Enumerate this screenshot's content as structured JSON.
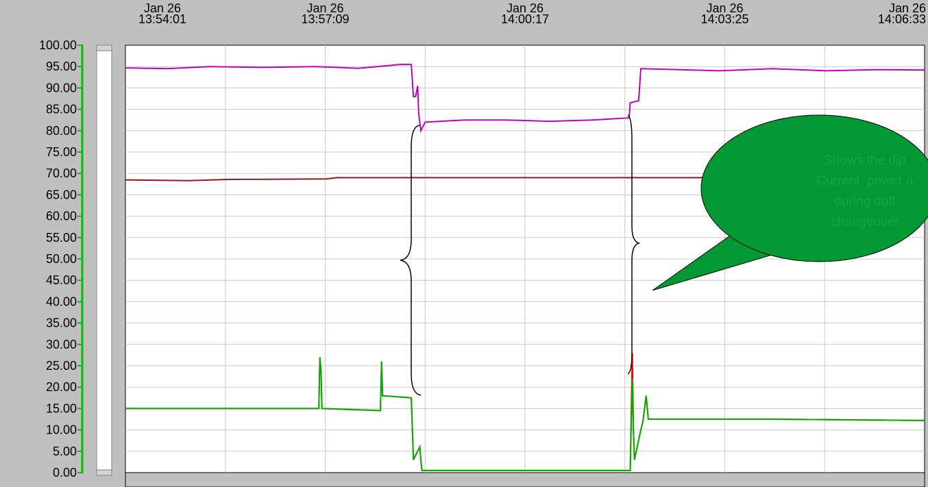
{
  "chart_data": {
    "type": "line",
    "xlim": [
      50041,
      50793
    ],
    "xticks": [
      {
        "value": 50041,
        "label": [
          "Jan 26",
          "13:54:01"
        ]
      },
      {
        "value": 50229,
        "label": [
          "Jan 26",
          "13:57:09"
        ]
      },
      {
        "value": 50417,
        "label": [
          "Jan 26",
          "14:00:17"
        ]
      },
      {
        "value": 50605,
        "label": [
          "Jan 26",
          "14:03:25"
        ]
      },
      {
        "value": 50793,
        "label": [
          "Jan 26",
          "14:06:33"
        ]
      }
    ],
    "ylim": [
      0,
      100
    ],
    "yticks": [
      {
        "value": 100,
        "label": "100.00"
      },
      {
        "value": 95,
        "label": "95.00"
      },
      {
        "value": 90,
        "label": "90.00"
      },
      {
        "value": 85,
        "label": "85.00"
      },
      {
        "value": 80,
        "label": "80.00"
      },
      {
        "value": 75,
        "label": "75.00"
      },
      {
        "value": 70,
        "label": "70.00"
      },
      {
        "value": 65,
        "label": "65.00"
      },
      {
        "value": 60,
        "label": "60.00"
      },
      {
        "value": 55,
        "label": "55.00"
      },
      {
        "value": 50,
        "label": "50.00"
      },
      {
        "value": 45,
        "label": "45.00"
      },
      {
        "value": 40,
        "label": "40.00"
      },
      {
        "value": 35,
        "label": "35.00"
      },
      {
        "value": 30,
        "label": "30.00"
      },
      {
        "value": 25,
        "label": "25.00"
      },
      {
        "value": 20,
        "label": "20.00"
      },
      {
        "value": 15,
        "label": "15.00"
      },
      {
        "value": 10,
        "label": "10.00"
      },
      {
        "value": 5,
        "label": "5.00"
      },
      {
        "value": 0,
        "label": "0.00"
      }
    ],
    "grid": true,
    "series": [
      {
        "color": "#c000c0",
        "x": [
          50041,
          50080,
          50120,
          50170,
          50220,
          50260,
          50300,
          50310,
          50312,
          50314,
          50316,
          50317,
          50319,
          50323,
          50360,
          50400,
          50440,
          50480,
          50515,
          50516,
          50524,
          50526,
          50560,
          50600,
          50650,
          50700,
          50750,
          50793
        ],
        "values": [
          94.7,
          94.5,
          95,
          94.8,
          95,
          94.6,
          95.5,
          95.5,
          88,
          88,
          90.5,
          84,
          80,
          82,
          82.5,
          82.5,
          82.2,
          82.5,
          83,
          86.5,
          87,
          94.5,
          94.3,
          94,
          94.5,
          94,
          94.3,
          94.2
        ]
      },
      {
        "color": "#8b1a1a",
        "x": [
          50041,
          50100,
          50140,
          50230,
          50240,
          50793
        ],
        "values": [
          68.5,
          68.3,
          68.6,
          68.7,
          69,
          69
        ]
      },
      {
        "color": "#ff0000",
        "x": [
          50041,
          50223,
          50224,
          50225,
          50226,
          50281,
          50282,
          50283,
          50310,
          50312,
          50318,
          50319,
          50320,
          50516,
          50518,
          50519,
          50520,
          50526,
          50528,
          50531,
          50533,
          50650,
          50793
        ],
        "values": [
          15,
          15,
          27,
          24,
          15,
          14.5,
          26,
          18,
          17.5,
          3,
          6,
          3,
          0.5,
          0.5,
          28,
          10,
          3,
          10,
          12,
          18,
          12.5,
          12.5,
          12.2
        ]
      },
      {
        "color": "#00b000",
        "x": [
          50041,
          50223,
          50224,
          50225,
          50226,
          50281,
          50282,
          50283,
          50310,
          50312,
          50318,
          50319,
          50320,
          50516,
          50518,
          50519,
          50520,
          50526,
          50528,
          50531,
          50533,
          50650,
          50793
        ],
        "values": [
          15,
          15,
          27,
          24,
          15,
          14.5,
          26,
          18,
          17.5,
          3,
          6,
          3,
          0.5,
          0.5,
          22,
          10,
          3,
          10,
          12,
          18,
          12.5,
          12.5,
          12.2
        ]
      }
    ],
    "annotation": [
      "Shows the dip",
      "Current, power a",
      "during doff",
      "changeover"
    ]
  }
}
